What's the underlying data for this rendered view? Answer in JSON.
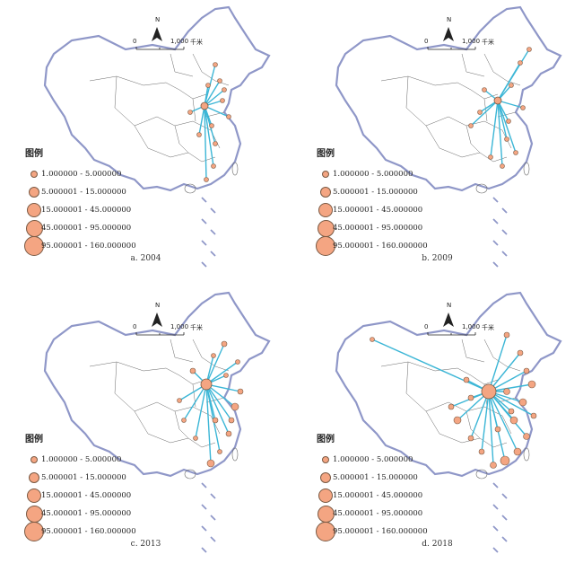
{
  "legend": {
    "title": "图例",
    "classes": [
      "1.000000 - 5.000000",
      "5.000001 - 15.000000",
      "15.000001 - 45.000000",
      "45.000001 - 95.000000",
      "95.000001 - 160.000000"
    ]
  },
  "scale": {
    "zero": "0",
    "distance": "1,000",
    "unit": "千米"
  },
  "north": "N",
  "maps": [
    {
      "title": "a. 2004",
      "hub": "hub-a"
    },
    {
      "title": "b. 2009",
      "hub": "hub-b"
    },
    {
      "title": "c. 2013",
      "hub": "hub-c"
    },
    {
      "title": "d. 2018",
      "hub": "hub-d"
    }
  ],
  "colors": {
    "outline": "#8f97c8",
    "flow": "#3cb6d6",
    "node": "#f4a582",
    "node_border": "#7a5a44"
  }
}
